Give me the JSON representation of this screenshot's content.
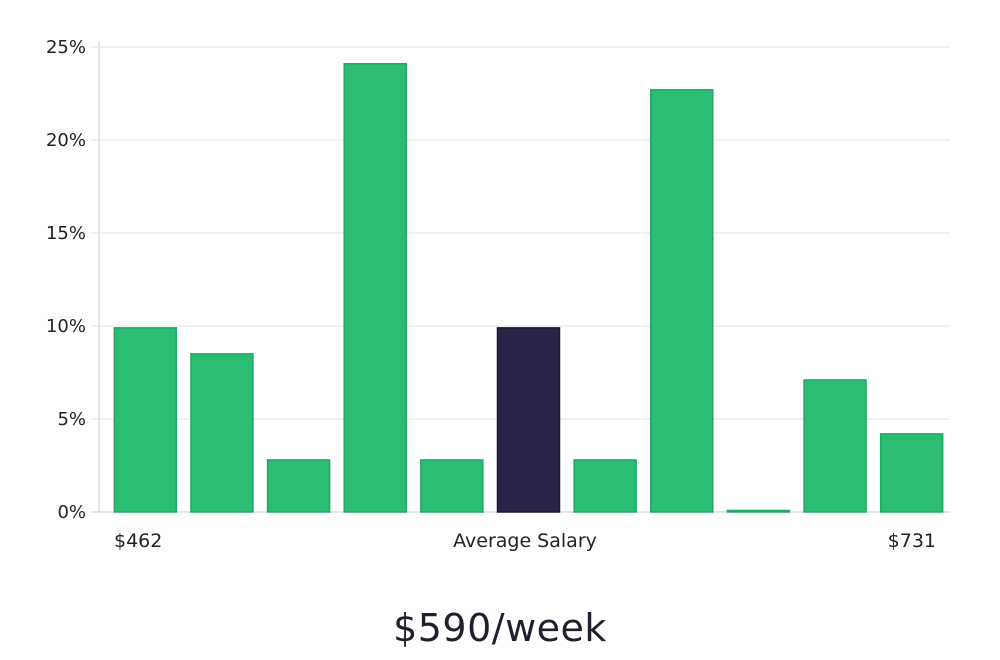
{
  "chart_data": {
    "type": "bar",
    "x_labels": {
      "min": "$462",
      "center": "Average Salary",
      "max": "$731"
    },
    "y_ticks": [
      "0%",
      "5%",
      "10%",
      "15%",
      "20%",
      "25%"
    ],
    "y_tick_values": [
      0,
      5,
      10,
      15,
      20,
      25
    ],
    "ylim": [
      0,
      25
    ],
    "values": [
      9.9,
      8.5,
      2.8,
      24.1,
      2.8,
      9.9,
      2.8,
      22.7,
      0.05,
      7.1,
      4.2
    ],
    "highlight_index": 5,
    "grid": true,
    "colors": {
      "bar": "#2bbd74",
      "bar_stroke": "#22a864",
      "highlight": "#282446",
      "grid": "#e3e3e3",
      "axis": "#cccccc"
    }
  },
  "headline": "$590/week"
}
